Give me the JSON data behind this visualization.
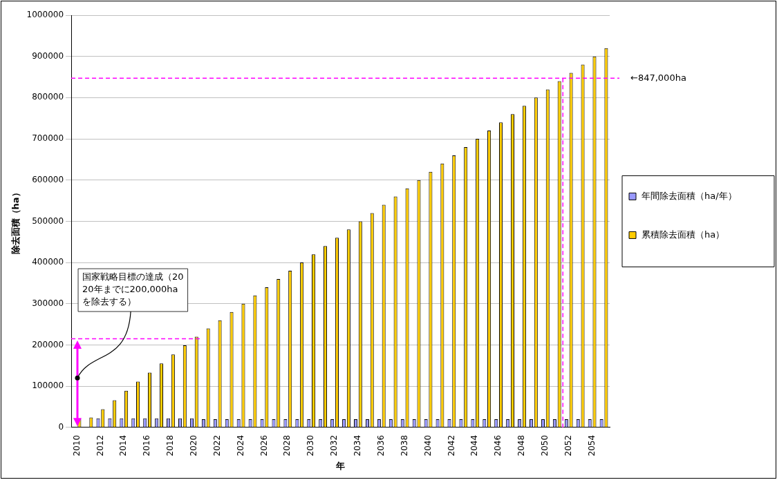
{
  "chart_data": {
    "type": "bar",
    "xlabel": "年",
    "ylabel": "除去面積（ha）",
    "categories": [
      "2010",
      null,
      "2012",
      null,
      "2014",
      null,
      "2016",
      null,
      "2018",
      null,
      "2020",
      null,
      "2022",
      null,
      "2024",
      null,
      "2026",
      null,
      "2028",
      null,
      "2030",
      null,
      "2032",
      null,
      "2034",
      null,
      "2036",
      null,
      "2038",
      null,
      "2040",
      null,
      "2042",
      null,
      "2044",
      null,
      "2046",
      null,
      "2048",
      null,
      "2050",
      null,
      "2052",
      null,
      "2054",
      null
    ],
    "series": [
      {
        "name": "年間除去面積（ha/年）",
        "color": "#9999ff",
        "values": [
          1000,
          null,
          22000,
          22000,
          22000,
          22000,
          22000,
          22000,
          22000,
          22000,
          22000,
          20000,
          20000,
          20000,
          20000,
          20000,
          20000,
          20000,
          20000,
          20000,
          20000,
          20000,
          20000,
          20000,
          20000,
          20000,
          20000,
          20000,
          20000,
          20000,
          20000,
          20000,
          20000,
          20000,
          20000,
          20000,
          20000,
          20000,
          20000,
          20000,
          20000,
          20000,
          20000,
          20000,
          20000,
          20000
        ]
      },
      {
        "name": "累積除去面積（ha）",
        "color": "#ffcc00",
        "values": [
          20000,
          24000,
          44000,
          66000,
          89000,
          111000,
          133000,
          155000,
          177000,
          199000,
          220000,
          240000,
          260000,
          280000,
          300000,
          320000,
          340000,
          360000,
          380000,
          400000,
          420000,
          440000,
          460000,
          480000,
          500000,
          520000,
          540000,
          560000,
          580000,
          600000,
          620000,
          640000,
          660000,
          680000,
          700000,
          720000,
          740000,
          760000,
          780000,
          800000,
          820000,
          840000,
          860000,
          880000,
          900000,
          920000
        ]
      }
    ],
    "ylim": [
      0,
      1000000
    ],
    "yticks": [
      0,
      100000,
      200000,
      300000,
      400000,
      500000,
      600000,
      700000,
      800000,
      900000,
      1000000
    ],
    "grid": "y",
    "legend": "right",
    "ref_lines": [
      {
        "axis": "y",
        "value": 847000,
        "label": "←847,000ha",
        "color": "#ff00ff",
        "line_style": "dashed"
      },
      {
        "axis": "y",
        "value": 215000,
        "color": "#ff00ff",
        "line_style": "dashed"
      },
      {
        "axis": "x",
        "value": "2052",
        "color": "#ff00ff",
        "line_style": "dashed"
      }
    ],
    "annotations": [
      "国家戦略目標の達成（2020年までに200,000haを除去する）"
    ]
  }
}
